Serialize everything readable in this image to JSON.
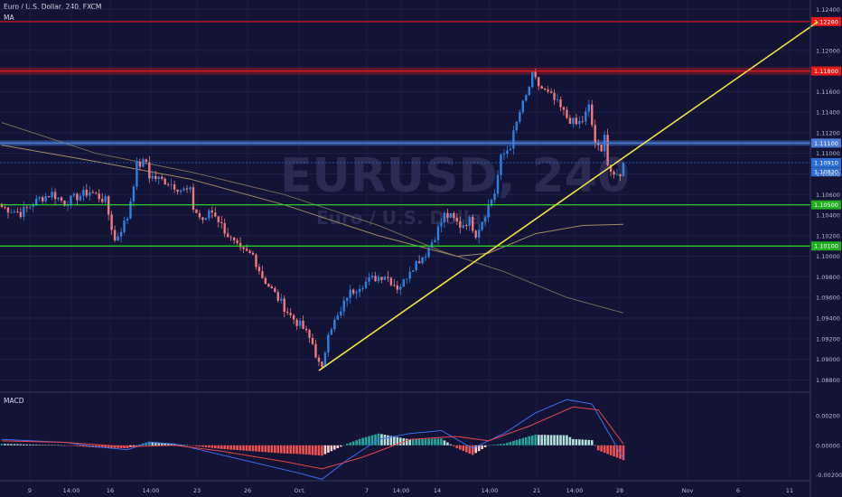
{
  "header": {
    "title": "Euro / U.S. Dollar, 240, FXCM",
    "indicator": "MA"
  },
  "watermark": {
    "symbol": "EURUSD, 240",
    "name": "Euro / U.S. Dollar"
  },
  "macd_label": "MACD",
  "colors": {
    "background": "#131336",
    "candle_up": "#2b82e6",
    "candle_down": "#f07a7a",
    "resistance": "#e61919",
    "support": "#2ee02e",
    "blue_zone": "#4a7cd6",
    "trendline": "#f2e43c",
    "ma_fast": "#b8a06a",
    "ma_slow": "#8a7a5a",
    "macd_line": "#3a6ef0",
    "signal_line": "#e64646"
  },
  "chart_data": {
    "type": "candlestick",
    "title": "",
    "symbol": "EURUSD",
    "timeframe": "240",
    "price_axis": {
      "range": [
        1.0868,
        1.1249
      ],
      "ticks": [
        "1.08800",
        "1.09000",
        "1.09200",
        "1.09400",
        "1.09600",
        "1.09800",
        "1.10000",
        "1.10200",
        "1.10400",
        "1.10600",
        "1.10800",
        "1.11000",
        "1.11200",
        "1.11400",
        "1.11600",
        "1.12000",
        "1.12400"
      ]
    },
    "time_axis": {
      "ticks": [
        "9",
        "14:00",
        "16",
        "14:00",
        "23",
        "26",
        "Oct",
        "7",
        "14:00",
        "14",
        "14:00",
        "21",
        "14:00",
        "28",
        "Nov",
        "6",
        "11"
      ]
    },
    "close_path": [
      [
        0,
        1.1048
      ],
      [
        6,
        1.1042
      ],
      [
        12,
        1.1056
      ],
      [
        16,
        1.1061
      ],
      [
        20,
        1.1052
      ],
      [
        24,
        1.1058
      ],
      [
        28,
        1.1063
      ],
      [
        33,
        1.1054
      ],
      [
        36,
        1.1015
      ],
      [
        40,
        1.1038
      ],
      [
        43,
        1.1088
      ],
      [
        46,
        1.1092
      ],
      [
        47,
        1.1078
      ],
      [
        53,
        1.1072
      ],
      [
        57,
        1.1065
      ],
      [
        60,
        1.1063
      ],
      [
        61,
        1.1047
      ],
      [
        63,
        1.1038
      ],
      [
        65,
        1.1034
      ],
      [
        66,
        1.1045
      ],
      [
        68,
        1.1041
      ],
      [
        70,
        1.103
      ],
      [
        73,
        1.1016
      ],
      [
        76,
        1.1005
      ],
      [
        80,
        1.1001
      ],
      [
        83,
        1.098
      ],
      [
        88,
        1.0959
      ],
      [
        92,
        1.0942
      ],
      [
        96,
        1.093
      ],
      [
        99,
        1.0915
      ],
      [
        101,
        1.0895
      ],
      [
        102,
        1.0889
      ],
      [
        104,
        1.0928
      ],
      [
        108,
        1.0945
      ],
      [
        110,
        1.0962
      ],
      [
        114,
        1.0972
      ],
      [
        118,
        1.0978
      ],
      [
        122,
        1.0982
      ],
      [
        126,
        1.097
      ],
      [
        128,
        1.0975
      ],
      [
        130,
        1.0988
      ],
      [
        135,
        1.1003
      ],
      [
        138,
        1.102
      ],
      [
        141,
        1.104
      ],
      [
        143,
        1.1038
      ],
      [
        146,
        1.103
      ],
      [
        149,
        1.1035
      ],
      [
        151,
        1.1022
      ],
      [
        154,
        1.1042
      ],
      [
        157,
        1.1062
      ],
      [
        159,
        1.1095
      ],
      [
        162,
        1.1108
      ],
      [
        165,
        1.114
      ],
      [
        167,
        1.1155
      ],
      [
        169,
        1.1175
      ],
      [
        171,
        1.1166
      ],
      [
        173,
        1.116
      ],
      [
        175,
        1.1155
      ],
      [
        177,
        1.1148
      ],
      [
        180,
        1.1135
      ],
      [
        183,
        1.1128
      ],
      [
        185,
        1.1132
      ],
      [
        187,
        1.1145
      ],
      [
        189,
        1.111
      ],
      [
        191,
        1.11
      ],
      [
        192,
        1.1122
      ],
      [
        193,
        1.109
      ],
      [
        195,
        1.1075
      ],
      [
        197,
        1.1081
      ],
      [
        198,
        1.1089
      ]
    ],
    "levels": [
      {
        "price": 1.1228,
        "color": "red",
        "label": "1.12280"
      },
      {
        "price": 1.118,
        "color": "red",
        "label": "1.11800"
      },
      {
        "price": 1.111,
        "color": "blue",
        "label": "1.11100"
      },
      {
        "price": 1.105,
        "color": "green",
        "label": "1.10500"
      },
      {
        "price": 1.101,
        "color": "green",
        "label": "1.10100"
      }
    ],
    "price_tags": [
      {
        "label": "1.10910",
        "price": 1.1091
      },
      {
        "label": "1.10820",
        "price": 1.1082
      }
    ],
    "trendline": {
      "from": [
        101,
        1.0889
      ],
      "to": [
        260,
        1.1228
      ]
    },
    "moving_averages": [
      {
        "points": [
          [
            0,
            1.1108
          ],
          [
            30,
            1.1092
          ],
          [
            60,
            1.1075
          ],
          [
            90,
            1.105
          ],
          [
            120,
            1.102
          ],
          [
            135,
            1.1008
          ],
          [
            145,
            1.1
          ],
          [
            155,
            1.1003
          ],
          [
            170,
            1.1022
          ],
          [
            185,
            1.103
          ],
          [
            198,
            1.1031
          ]
        ]
      },
      {
        "points": [
          [
            0,
            1.113
          ],
          [
            30,
            1.11
          ],
          [
            60,
            1.1082
          ],
          [
            90,
            1.106
          ],
          [
            120,
            1.103
          ],
          [
            140,
            1.1005
          ],
          [
            160,
            1.0985
          ],
          [
            180,
            1.096
          ],
          [
            198,
            1.0945
          ]
        ]
      }
    ],
    "macd": {
      "label": "MACD",
      "range": [
        -0.0024,
        0.0036
      ],
      "ticks": [
        "0.00200",
        "0.00000",
        "-0.00200"
      ],
      "macd_line": [
        [
          0,
          0.0004
        ],
        [
          10,
          0.0003
        ],
        [
          20,
          0.0002
        ],
        [
          30,
          -0.0001
        ],
        [
          40,
          -0.0003
        ],
        [
          47,
          0.0002
        ],
        [
          55,
          0.0001
        ],
        [
          65,
          -0.0004
        ],
        [
          75,
          -0.0009
        ],
        [
          85,
          -0.0014
        ],
        [
          95,
          -0.0019
        ],
        [
          102,
          -0.0023
        ],
        [
          110,
          -0.001
        ],
        [
          120,
          0.0004
        ],
        [
          130,
          0.0008
        ],
        [
          140,
          0.001
        ],
        [
          150,
          -0.0002
        ],
        [
          160,
          0.0008
        ],
        [
          170,
          0.0022
        ],
        [
          180,
          0.0031
        ],
        [
          188,
          0.0028
        ],
        [
          198,
          -0.0009
        ]
      ],
      "signal_line": [
        [
          0,
          0.0003
        ],
        [
          20,
          0.0002
        ],
        [
          40,
          -0.0001
        ],
        [
          55,
          0.0
        ],
        [
          70,
          -0.0004
        ],
        [
          90,
          -0.0011
        ],
        [
          102,
          -0.0016
        ],
        [
          115,
          -0.0008
        ],
        [
          130,
          0.0004
        ],
        [
          145,
          0.0006
        ],
        [
          155,
          0.0003
        ],
        [
          168,
          0.0013
        ],
        [
          182,
          0.0026
        ],
        [
          190,
          0.0024
        ],
        [
          198,
          0.0001
        ]
      ]
    }
  }
}
